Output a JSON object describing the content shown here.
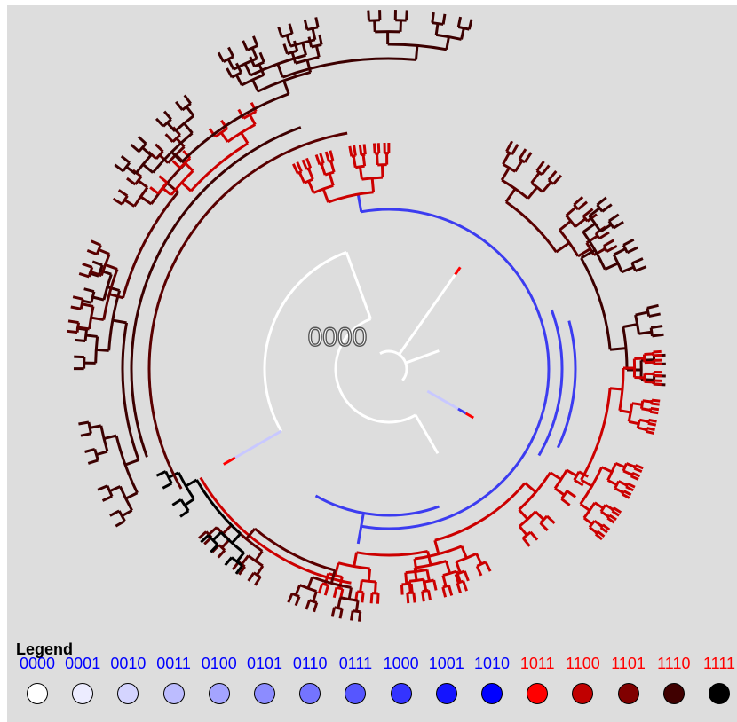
{
  "root_label": "0000",
  "legend": {
    "title": "Legend",
    "entries": [
      {
        "code": "0000",
        "fill": "#ffffff",
        "text_color": "#0000ff"
      },
      {
        "code": "0001",
        "fill": "#ececff",
        "text_color": "#0000ff"
      },
      {
        "code": "0010",
        "fill": "#d4d4ff",
        "text_color": "#0000ff"
      },
      {
        "code": "0011",
        "fill": "#bcbcff",
        "text_color": "#0000ff"
      },
      {
        "code": "0100",
        "fill": "#a4a4ff",
        "text_color": "#0000ff"
      },
      {
        "code": "0101",
        "fill": "#8c8cff",
        "text_color": "#0000ff"
      },
      {
        "code": "0110",
        "fill": "#7474ff",
        "text_color": "#0000ff"
      },
      {
        "code": "0111",
        "fill": "#5656ff",
        "text_color": "#0000ff"
      },
      {
        "code": "1000",
        "fill": "#3434ff",
        "text_color": "#0000ff"
      },
      {
        "code": "1001",
        "fill": "#1414ff",
        "text_color": "#0000ff"
      },
      {
        "code": "1010",
        "fill": "#0000ff",
        "text_color": "#0000ff"
      },
      {
        "code": "1011",
        "fill": "#ff0000",
        "text_color": "#ff0000"
      },
      {
        "code": "1100",
        "fill": "#c00000",
        "text_color": "#ff0000"
      },
      {
        "code": "1101",
        "fill": "#800000",
        "text_color": "#ff0000"
      },
      {
        "code": "1110",
        "fill": "#400000",
        "text_color": "#ff0000"
      },
      {
        "code": "1111",
        "fill": "#000000",
        "text_color": "#ff0000"
      }
    ]
  },
  "branch_colors": {
    "white": "#ffffff",
    "pale_blue": "#c8c8ff",
    "blue": "#3c3cf0",
    "red": "#cc0000",
    "bright_red": "#ff0000",
    "dark_red": "#5a0000",
    "darker_red": "#3c0000",
    "black": "#000000"
  }
}
